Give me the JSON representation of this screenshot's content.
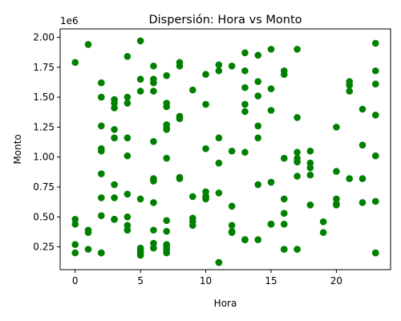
{
  "chart_data": {
    "type": "scatter",
    "title": "Dispersión: Hora vs Monto",
    "xlabel": "Hora",
    "ylabel": "Monto",
    "y_scale_label": "1e6",
    "xlim": [
      -1.15,
      24.15
    ],
    "ylim": [
      0.06,
      2.07
    ],
    "x_ticks": [
      0,
      5,
      10,
      15,
      20
    ],
    "y_ticks": [
      0.25,
      0.5,
      0.75,
      1.0,
      1.25,
      1.5,
      1.75,
      2.0
    ],
    "y_tick_labels": [
      "0.25",
      "0.50",
      "0.75",
      "1.00",
      "1.25",
      "1.50",
      "1.75",
      "2.00"
    ],
    "grid": false,
    "legend": "none",
    "marker_color": "#008000",
    "series": [
      {
        "x": [
          0,
          0,
          0,
          0,
          0,
          1,
          1,
          1,
          1,
          2,
          2,
          2,
          2,
          2,
          2,
          2,
          2,
          2,
          2,
          3,
          3,
          3,
          3,
          3,
          3,
          3,
          3,
          3,
          3,
          4,
          4,
          4,
          4,
          4,
          4,
          4,
          4,
          4,
          4,
          5,
          5,
          5,
          5,
          5,
          5,
          5,
          5,
          6,
          6,
          6,
          6,
          6,
          6,
          6,
          6,
          6,
          6,
          6,
          7,
          7,
          7,
          7,
          7,
          7,
          7,
          7,
          7,
          7,
          7,
          7,
          7,
          7,
          8,
          8,
          8,
          8,
          8,
          8,
          9,
          9,
          9,
          9,
          9,
          10,
          10,
          10,
          10,
          10,
          10,
          10,
          11,
          11,
          11,
          11,
          11,
          11,
          11,
          12,
          12,
          12,
          12,
          12,
          12,
          13,
          13,
          13,
          13,
          13,
          13,
          13,
          13,
          13,
          14,
          14,
          14,
          14,
          14,
          14,
          14,
          15,
          15,
          15,
          15,
          15,
          15,
          15,
          16,
          16,
          16,
          16,
          16,
          16,
          16,
          16,
          17,
          17,
          17,
          17,
          17,
          17,
          17,
          17,
          17,
          18,
          18,
          18,
          18,
          18,
          19,
          19,
          20,
          20,
          20,
          20,
          20,
          21,
          21,
          21,
          21,
          22,
          22,
          22,
          22,
          23,
          23,
          23,
          23,
          23,
          23,
          23,
          23
        ],
        "y": [
          1.79,
          0.48,
          0.44,
          0.27,
          0.2,
          1.94,
          0.39,
          0.37,
          0.23,
          1.62,
          1.5,
          1.26,
          1.07,
          1.05,
          0.86,
          0.66,
          0.51,
          0.2,
          0.2,
          1.48,
          1.45,
          1.41,
          1.23,
          1.16,
          0.77,
          0.66,
          0.48,
          0.48,
          0.48,
          1.84,
          1.5,
          1.45,
          1.16,
          1.01,
          0.69,
          0.5,
          0.43,
          0.39,
          0.39,
          1.97,
          1.65,
          1.55,
          0.65,
          0.24,
          0.22,
          0.2,
          0.18,
          1.76,
          1.65,
          1.62,
          1.55,
          1.13,
          0.82,
          0.8,
          0.62,
          0.39,
          0.28,
          0.24,
          1.68,
          1.45,
          1.42,
          1.27,
          1.24,
          1.23,
          0.99,
          0.47,
          0.38,
          0.27,
          0.26,
          0.24,
          0.22,
          0.2,
          1.79,
          1.76,
          1.34,
          1.32,
          0.83,
          0.82,
          1.56,
          0.67,
          0.49,
          0.46,
          0.43,
          1.69,
          1.44,
          1.07,
          0.71,
          0.67,
          0.67,
          0.65,
          1.77,
          1.72,
          1.16,
          0.95,
          0.7,
          0.12,
          0.12,
          1.76,
          1.05,
          0.59,
          0.43,
          0.38,
          0.37,
          1.87,
          1.72,
          1.58,
          1.44,
          1.38,
          1.04,
          0.31,
          0.31,
          0.31,
          1.85,
          1.63,
          1.51,
          1.26,
          1.16,
          0.77,
          0.31,
          1.9,
          1.57,
          1.39,
          0.79,
          0.44,
          0.44,
          0.44,
          1.72,
          1.69,
          0.99,
          0.65,
          0.53,
          0.44,
          0.23,
          0.23,
          1.9,
          1.33,
          1.04,
          0.99,
          0.96,
          0.96,
          0.84,
          0.23,
          0.23,
          1.05,
          0.95,
          0.91,
          0.85,
          0.6,
          0.46,
          0.37,
          1.25,
          0.88,
          0.65,
          0.61,
          0.6,
          1.63,
          1.6,
          1.55,
          0.82,
          1.4,
          1.1,
          0.82,
          0.62,
          1.95,
          1.72,
          1.61,
          1.35,
          1.01,
          0.63,
          0.2,
          0.2
        ]
      }
    ]
  }
}
